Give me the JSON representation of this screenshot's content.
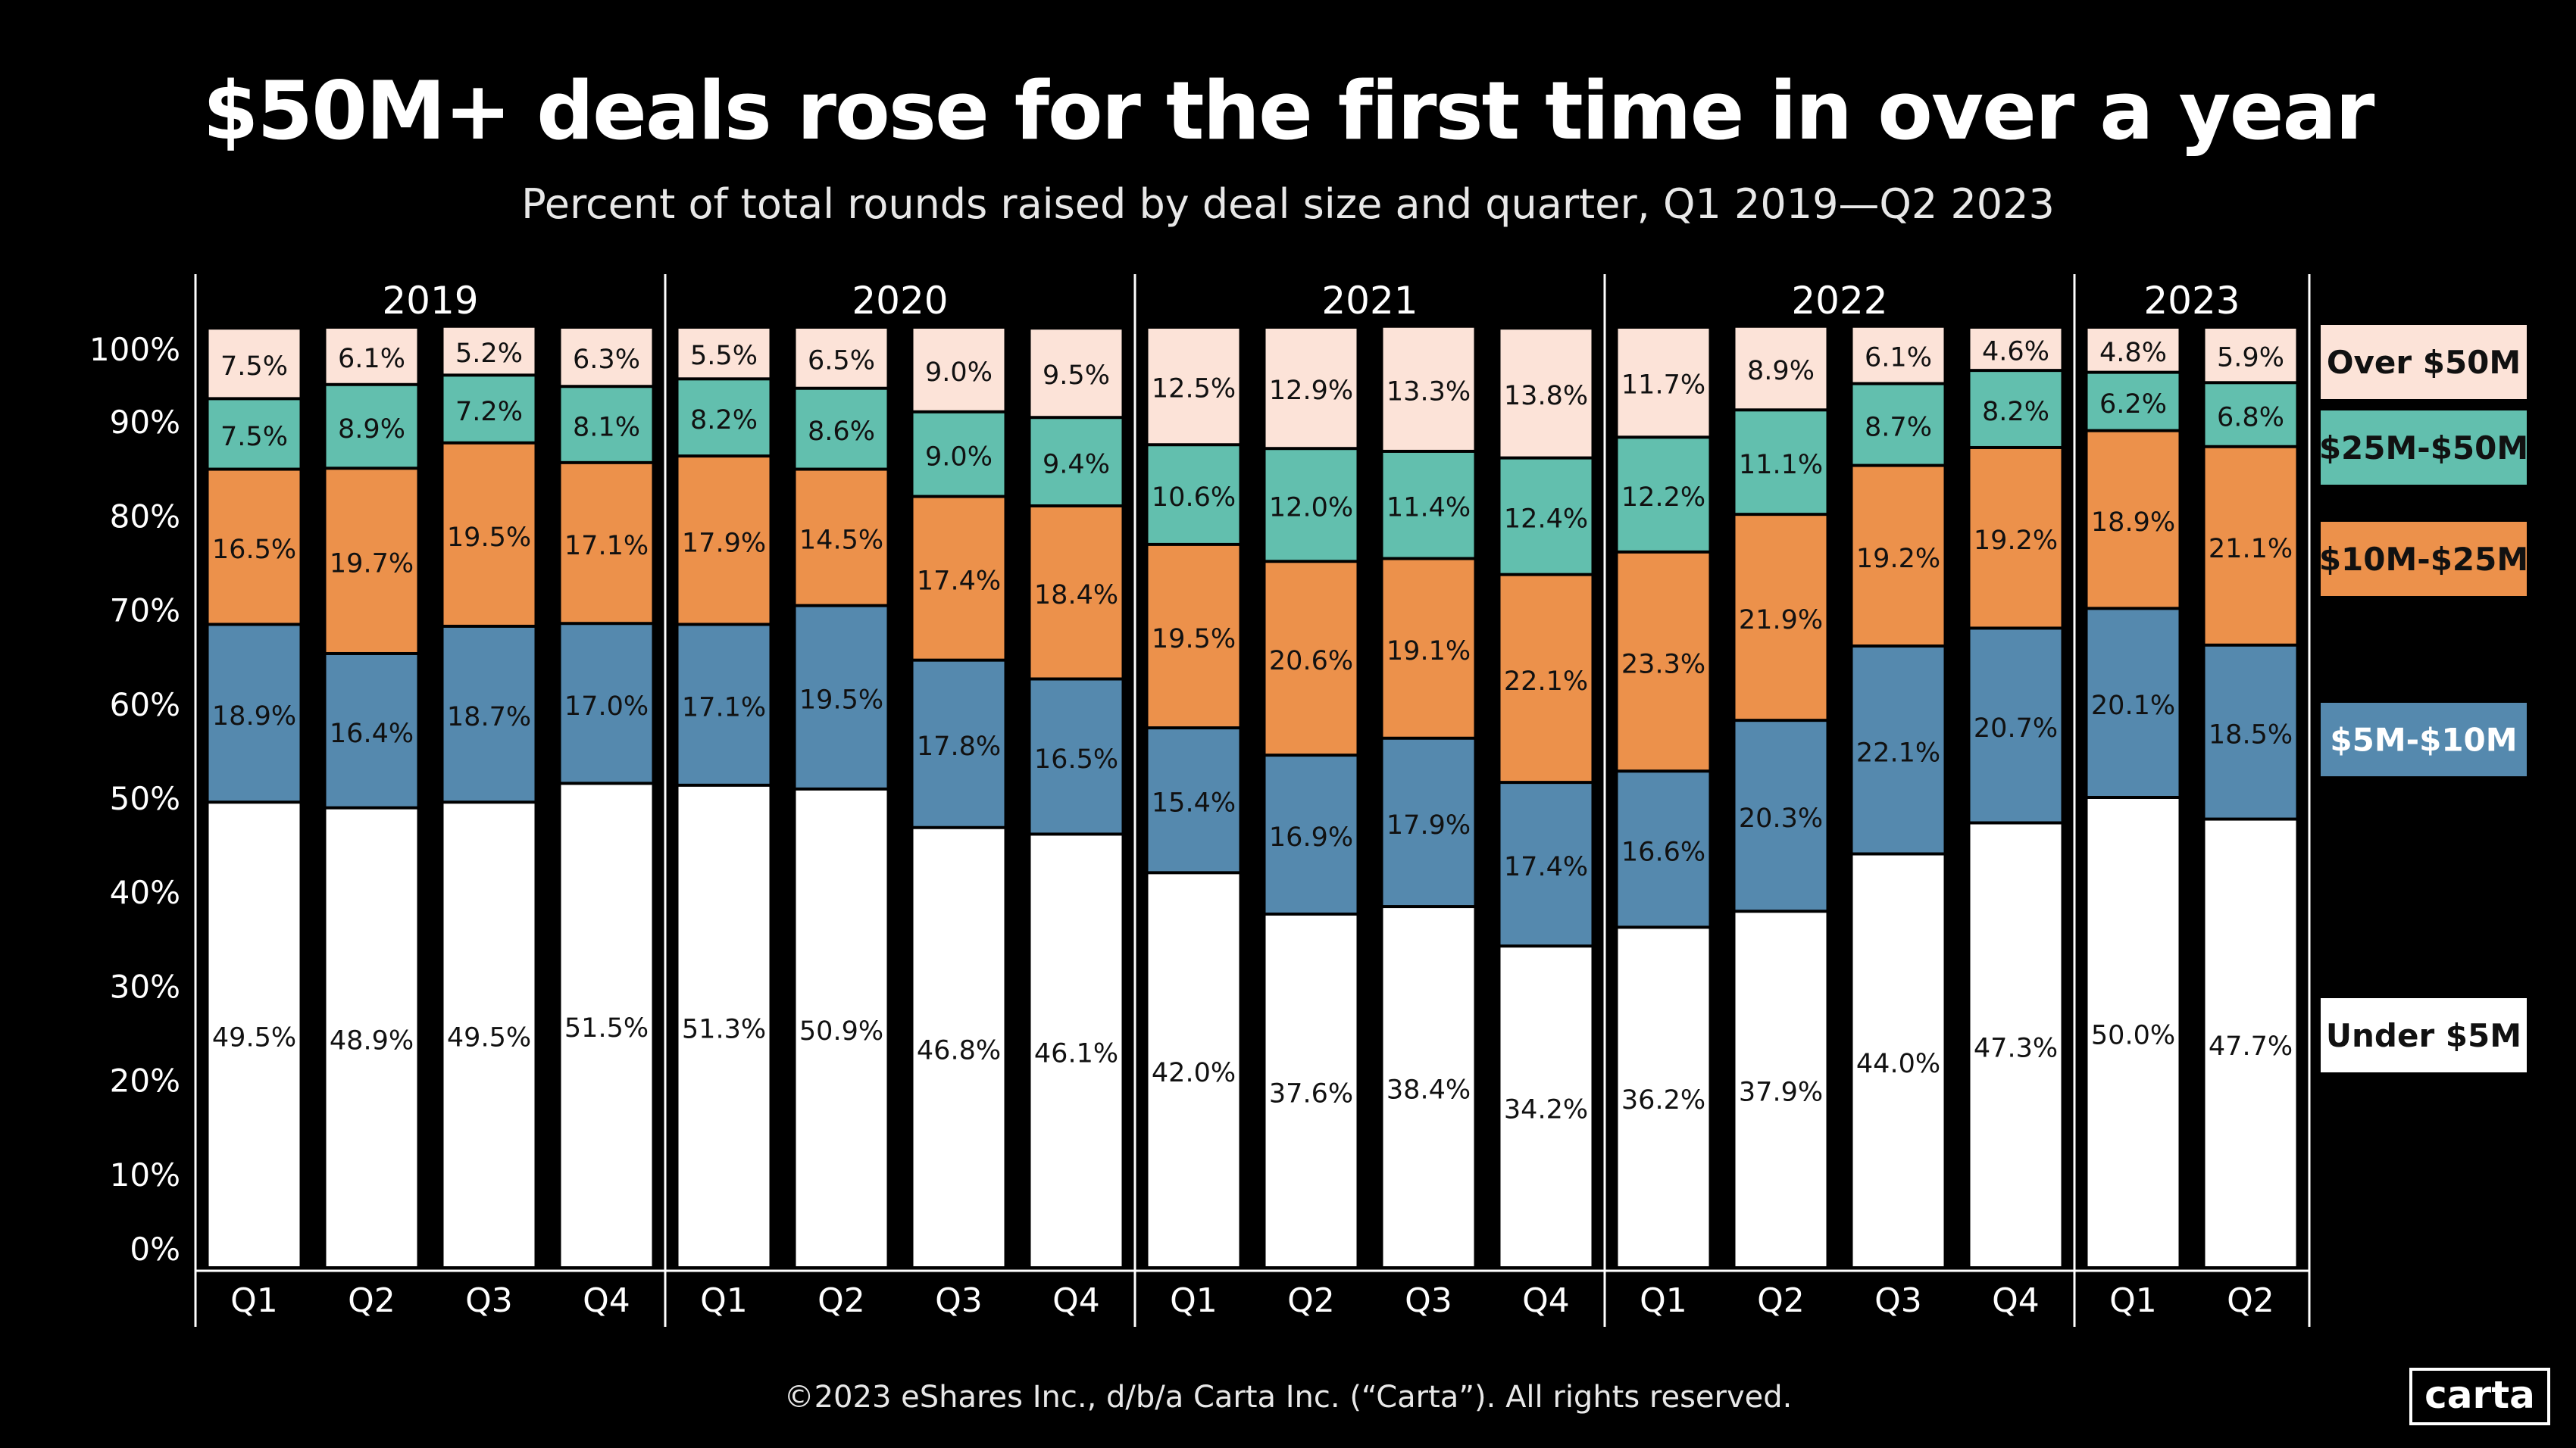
{
  "title": "$50M+ deals rose for the first time in over a year",
  "subtitle": "Percent of total rounds raised by deal size and quarter, Q1 2019—Q2 2023",
  "footer": "©2023 eShares Inc., d/b/a Carta Inc. (“Carta”). All rights reserved.",
  "logo": "carta",
  "chart_data": {
    "type": "bar",
    "stacked": true,
    "years": [
      {
        "label": "2019",
        "quarters": [
          "Q1",
          "Q2",
          "Q3",
          "Q4"
        ]
      },
      {
        "label": "2020",
        "quarters": [
          "Q1",
          "Q2",
          "Q3",
          "Q4"
        ]
      },
      {
        "label": "2021",
        "quarters": [
          "Q1",
          "Q2",
          "Q3",
          "Q4"
        ]
      },
      {
        "label": "2022",
        "quarters": [
          "Q1",
          "Q2",
          "Q3",
          "Q4"
        ]
      },
      {
        "label": "2023",
        "quarters": [
          "Q1",
          "Q2"
        ]
      }
    ],
    "ylim": [
      0,
      100
    ],
    "yticks": [
      "0%",
      "10%",
      "20%",
      "30%",
      "40%",
      "50%",
      "60%",
      "70%",
      "80%",
      "90%",
      "100%"
    ],
    "grid": false,
    "legend_position": "right",
    "series": [
      {
        "name": "Under $5M",
        "color": "#ffffff",
        "values": [
          49.5,
          48.9,
          49.5,
          51.5,
          51.3,
          50.9,
          46.8,
          46.1,
          42.0,
          37.6,
          38.4,
          34.2,
          36.2,
          37.9,
          44.0,
          47.3,
          50.0,
          47.7
        ]
      },
      {
        "name": "$5M-$10M",
        "color": "#5589ae",
        "values": [
          18.9,
          16.4,
          18.7,
          17.0,
          17.1,
          19.5,
          17.8,
          16.5,
          15.4,
          16.9,
          17.9,
          17.4,
          16.6,
          20.3,
          22.1,
          20.7,
          20.1,
          18.5
        ]
      },
      {
        "name": "$10M-$25M",
        "color": "#ec914b",
        "values": [
          16.5,
          19.7,
          19.5,
          17.1,
          17.9,
          14.5,
          17.4,
          18.4,
          19.5,
          20.6,
          19.1,
          22.1,
          23.3,
          21.9,
          19.2,
          19.2,
          18.9,
          21.1
        ]
      },
      {
        "name": "$25M-$50M",
        "color": "#62bfae",
        "values": [
          7.5,
          8.9,
          7.2,
          8.1,
          8.2,
          8.6,
          9.0,
          9.4,
          10.6,
          12.0,
          11.4,
          12.4,
          12.2,
          11.1,
          8.7,
          8.2,
          6.2,
          6.8
        ]
      },
      {
        "name": "Over $50M",
        "color": "#fce3d8",
        "values": [
          7.5,
          6.1,
          5.2,
          6.3,
          5.5,
          6.5,
          9.0,
          9.5,
          12.5,
          12.9,
          13.3,
          13.8,
          11.7,
          8.9,
          6.1,
          4.6,
          4.8,
          5.9
        ]
      }
    ]
  }
}
